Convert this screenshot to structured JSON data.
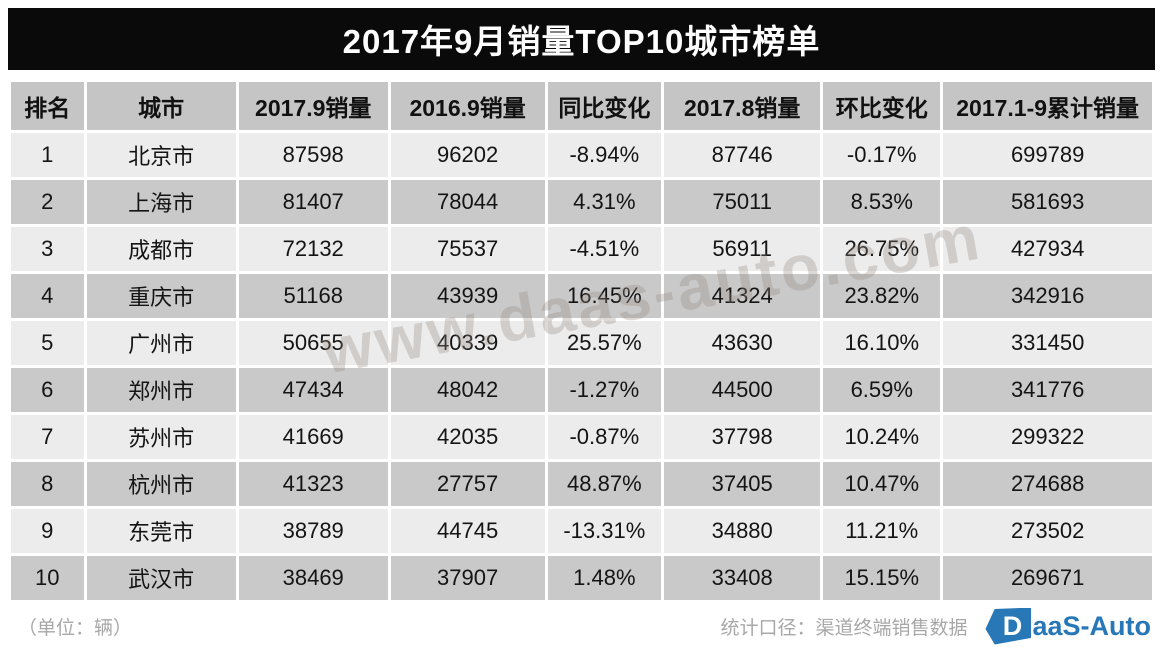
{
  "chart_data": {
    "type": "table",
    "title": "2017年9月销量TOP10城市榜单",
    "columns": [
      "排名",
      "城市",
      "2017.9销量",
      "2016.9销量",
      "同比变化",
      "2017.8销量",
      "环比变化",
      "2017.1-9累计销量"
    ],
    "rows": [
      [
        "1",
        "北京市",
        "87598",
        "96202",
        "-8.94%",
        "87746",
        "-0.17%",
        "699789"
      ],
      [
        "2",
        "上海市",
        "81407",
        "78044",
        "4.31%",
        "75011",
        "8.53%",
        "581693"
      ],
      [
        "3",
        "成都市",
        "72132",
        "75537",
        "-4.51%",
        "56911",
        "26.75%",
        "427934"
      ],
      [
        "4",
        "重庆市",
        "51168",
        "43939",
        "16.45%",
        "41324",
        "23.82%",
        "342916"
      ],
      [
        "5",
        "广州市",
        "50655",
        "40339",
        "25.57%",
        "43630",
        "16.10%",
        "331450"
      ],
      [
        "6",
        "郑州市",
        "47434",
        "48042",
        "-1.27%",
        "44500",
        "6.59%",
        "341776"
      ],
      [
        "7",
        "苏州市",
        "41669",
        "42035",
        "-0.87%",
        "37798",
        "10.24%",
        "299322"
      ],
      [
        "8",
        "杭州市",
        "41323",
        "27757",
        "48.87%",
        "37405",
        "10.47%",
        "274688"
      ],
      [
        "9",
        "东莞市",
        "38789",
        "44745",
        "-13.31%",
        "34880",
        "11.21%",
        "273502"
      ],
      [
        "10",
        "武汉市",
        "38469",
        "37907",
        "1.48%",
        "33408",
        "15.15%",
        "269671"
      ]
    ],
    "unit": "（单位：辆）",
    "source": "统计口径：渠道终端销售数据"
  },
  "watermark": "www.daas-auto.com",
  "footer": {
    "unit_note": "（单位：辆）",
    "source_note": "统计口径：渠道终端销售数据",
    "logo_d": "D",
    "logo_rest": "aaS-Auto"
  },
  "colors": {
    "title_bg": "#0a0a0a",
    "header_gray": "#c5c5c5",
    "row_light": "#ececec",
    "row_dark": "#c9c9c9",
    "accent_blue": "#2878b8",
    "footer_gray": "#a8a8a8"
  }
}
